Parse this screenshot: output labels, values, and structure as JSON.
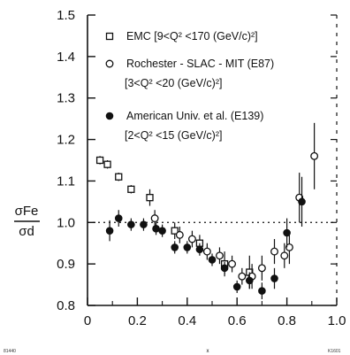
{
  "chart_data": {
    "type": "scatter",
    "xlabel": "x",
    "ylabel_numerator": "σFe",
    "ylabel_denominator": "σd",
    "xlim": [
      0,
      1.0
    ],
    "ylim": [
      0.8,
      1.5
    ],
    "x_ticks": [
      "0",
      "0.2",
      "0.4",
      "0.6",
      "0.8",
      "1.0"
    ],
    "y_ticks": [
      "0.8",
      "0.9",
      "1.0",
      "1.1",
      "1.2",
      "1.3",
      "1.4",
      "1.5"
    ],
    "reference_line": {
      "y": 1.0,
      "style": "dotted"
    },
    "corner_marks": {
      "left": "81440",
      "right": "K1601"
    },
    "legend": [
      {
        "symbol": "open-square",
        "line1": "EMC  [9<Q² <170 (GeV/c)²]"
      },
      {
        "symbol": "open-circle",
        "line1": "Rochester - SLAC - MIT (E87)",
        "line2": "[3<Q² <20 (GeV/c)²]"
      },
      {
        "symbol": "filled-circle",
        "line1": "American Univ. et al. (E139)",
        "line2": "[2<Q² <15 (GeV/c)²]"
      }
    ],
    "series": [
      {
        "name": "EMC  [9<Q² <170 (GeV/c)²]",
        "marker": "open-square",
        "points": [
          {
            "x": 0.05,
            "y": 1.15,
            "err": 0.01
          },
          {
            "x": 0.08,
            "y": 1.14,
            "err": 0.01
          },
          {
            "x": 0.125,
            "y": 1.11,
            "err": 0.01
          },
          {
            "x": 0.175,
            "y": 1.08,
            "err": 0.01
          },
          {
            "x": 0.25,
            "y": 1.06,
            "err": 0.02
          },
          {
            "x": 0.35,
            "y": 0.98,
            "err": 0.02
          },
          {
            "x": 0.45,
            "y": 0.95,
            "err": 0.02
          },
          {
            "x": 0.55,
            "y": 0.9,
            "err": 0.03
          },
          {
            "x": 0.65,
            "y": 0.88,
            "err": 0.04
          }
        ]
      },
      {
        "name": "Rochester - SLAC - MIT (E87)",
        "marker": "open-circle",
        "points": [
          {
            "x": 0.27,
            "y": 1.01,
            "err": 0.02
          },
          {
            "x": 0.37,
            "y": 0.97,
            "err": 0.02
          },
          {
            "x": 0.42,
            "y": 0.96,
            "err": 0.02
          },
          {
            "x": 0.48,
            "y": 0.93,
            "err": 0.02
          },
          {
            "x": 0.53,
            "y": 0.92,
            "err": 0.02
          },
          {
            "x": 0.58,
            "y": 0.9,
            "err": 0.02
          },
          {
            "x": 0.62,
            "y": 0.87,
            "err": 0.02
          },
          {
            "x": 0.66,
            "y": 0.87,
            "err": 0.03
          },
          {
            "x": 0.7,
            "y": 0.89,
            "err": 0.03
          },
          {
            "x": 0.75,
            "y": 0.93,
            "err": 0.03
          },
          {
            "x": 0.79,
            "y": 0.92,
            "err": 0.03
          },
          {
            "x": 0.81,
            "y": 0.94,
            "err": 0.04
          },
          {
            "x": 0.85,
            "y": 1.06,
            "err": 0.06
          },
          {
            "x": 0.91,
            "y": 1.16,
            "err": 0.08
          }
        ]
      },
      {
        "name": "American Univ. et al. (E139)",
        "marker": "filled-circle",
        "points": [
          {
            "x": 0.089,
            "y": 0.98,
            "err": 0.025
          },
          {
            "x": 0.125,
            "y": 1.01,
            "err": 0.02
          },
          {
            "x": 0.175,
            "y": 0.995,
            "err": 0.015
          },
          {
            "x": 0.225,
            "y": 0.995,
            "err": 0.015
          },
          {
            "x": 0.275,
            "y": 0.985,
            "err": 0.015
          },
          {
            "x": 0.3,
            "y": 0.98,
            "err": 0.015
          },
          {
            "x": 0.35,
            "y": 0.94,
            "err": 0.015
          },
          {
            "x": 0.4,
            "y": 0.94,
            "err": 0.015
          },
          {
            "x": 0.45,
            "y": 0.935,
            "err": 0.015
          },
          {
            "x": 0.5,
            "y": 0.91,
            "err": 0.015
          },
          {
            "x": 0.55,
            "y": 0.89,
            "err": 0.015
          },
          {
            "x": 0.6,
            "y": 0.845,
            "err": 0.015
          },
          {
            "x": 0.65,
            "y": 0.86,
            "err": 0.02
          },
          {
            "x": 0.7,
            "y": 0.835,
            "err": 0.02
          },
          {
            "x": 0.75,
            "y": 0.865,
            "err": 0.025
          },
          {
            "x": 0.8,
            "y": 0.975,
            "err": 0.035
          },
          {
            "x": 0.86,
            "y": 1.05,
            "err": 0.06
          }
        ]
      }
    ]
  }
}
